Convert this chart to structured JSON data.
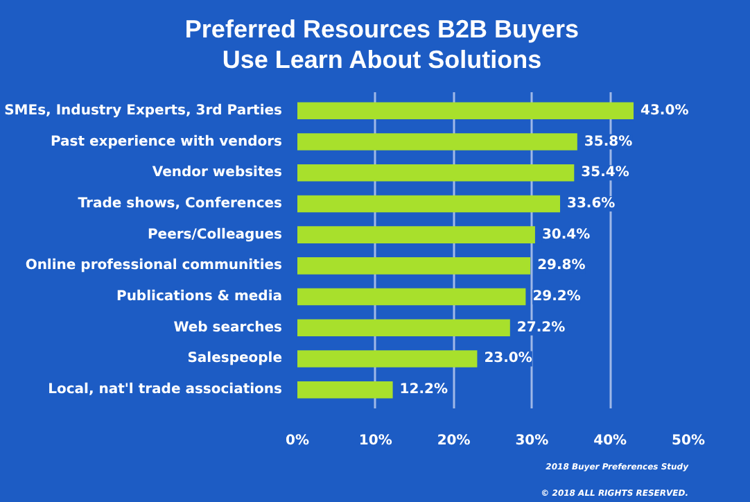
{
  "chart_data": {
    "type": "bar",
    "orientation": "horizontal",
    "title": "Preferred Resources B2B Buyers Use Learn About Solutions",
    "categories": [
      "SMEs, Industry Experts, 3rd Parties",
      "Past experience with vendors",
      "Vendor websites",
      "Trade shows, Conferences",
      "Peers/Colleagues",
      "Online professional communities",
      "Publications & media",
      "Web searches",
      "Salespeople",
      "Local, nat'l trade associations"
    ],
    "values": [
      43.0,
      35.8,
      35.4,
      33.6,
      30.4,
      29.8,
      29.2,
      27.2,
      23.0,
      12.2
    ],
    "value_labels": [
      "43.0%",
      "35.8%",
      "35.4%",
      "33.6%",
      "30.4%",
      "29.8%",
      "29.2%",
      "27.2%",
      "23.0%",
      "12.2%"
    ],
    "color": "#a8e02c",
    "xlim": [
      0,
      50
    ],
    "xticks": [
      {
        "value": 0,
        "label": "0%"
      },
      {
        "value": 10,
        "label": "10%"
      },
      {
        "value": 20,
        "label": "20%"
      },
      {
        "value": 30,
        "label": "30%"
      },
      {
        "value": 40,
        "label": "40%"
      },
      {
        "value": 50,
        "label": "50%"
      }
    ],
    "grid": "x",
    "annotations": [
      "2018 Buyer Preferences Study",
      "© 2018 ALL RIGHTS RESERVED."
    ]
  }
}
